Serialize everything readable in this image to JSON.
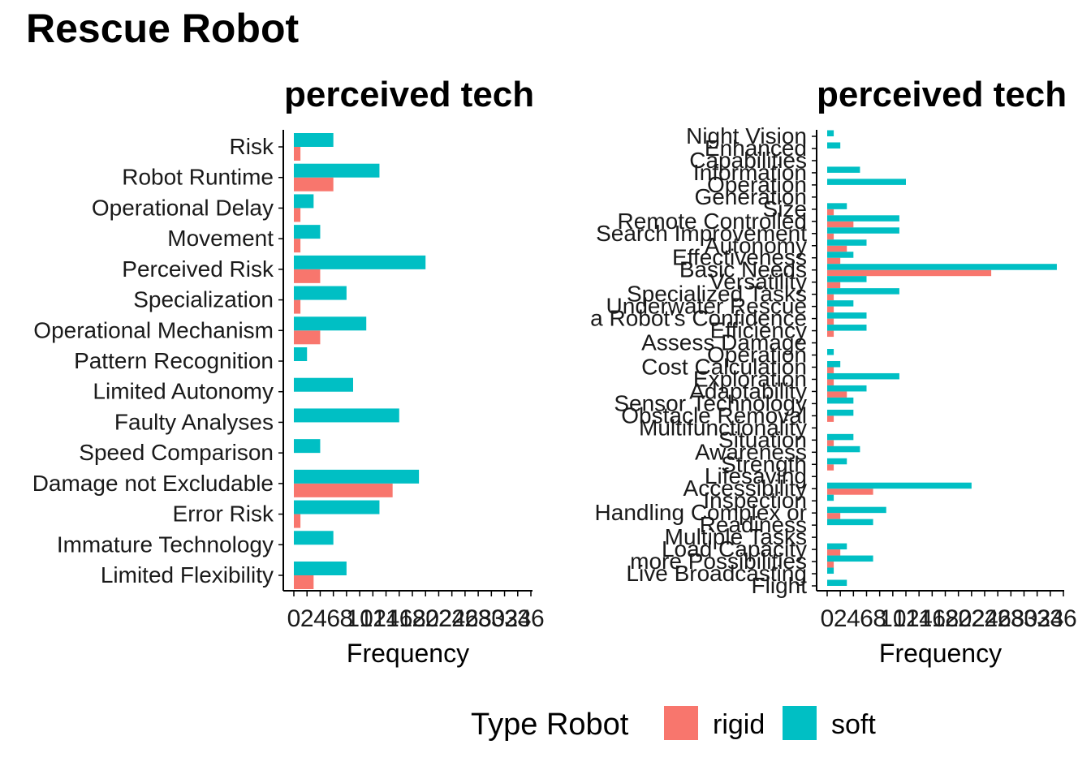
{
  "title": "Rescue Robot",
  "colors": {
    "rigid": "#F8766D",
    "soft": "#00BFC4",
    "axis": "#000000"
  },
  "legend": {
    "title": "Type Robot",
    "items": [
      {
        "key": "rigid",
        "label": "rigid"
      },
      {
        "key": "soft",
        "label": "soft"
      }
    ]
  },
  "chart_data": [
    {
      "type": "bar",
      "orientation": "horizontal",
      "title": "perceived tech",
      "xlabel": "Frequency",
      "xlim": [
        0,
        36
      ],
      "xticks": [
        0,
        2,
        4,
        6,
        8,
        10,
        12,
        14,
        16,
        18,
        20,
        22,
        24,
        26,
        28,
        30,
        32,
        34,
        36
      ],
      "grid": false,
      "categories": [
        "Risk",
        "Robot Runtime",
        "Operational Delay",
        "Movement",
        "Perceived Risk",
        "Specialization",
        "Operational Mechanism",
        "Pattern Recognition",
        "Limited Autonomy",
        "Faulty Analyses",
        "Speed Comparison",
        "Damage not Excludable",
        "Error Risk",
        "Immature Technology",
        "Limited Flexibility"
      ],
      "series": [
        {
          "name": "rigid",
          "values": [
            1,
            6,
            1,
            1,
            4,
            1,
            4,
            0,
            0,
            0,
            0,
            15,
            1,
            0,
            3
          ]
        },
        {
          "name": "soft",
          "values": [
            6,
            13,
            3,
            4,
            20,
            8,
            11,
            2,
            9,
            16,
            4,
            19,
            13,
            6,
            8
          ]
        }
      ]
    },
    {
      "type": "bar",
      "orientation": "horizontal",
      "title": "perceived tech",
      "xlabel": "Frequency",
      "xlim": [
        0,
        36
      ],
      "xticks": [
        0,
        2,
        4,
        6,
        8,
        10,
        12,
        14,
        16,
        18,
        20,
        22,
        24,
        26,
        28,
        30,
        32,
        34,
        36
      ],
      "grid": false,
      "categories": [
        "Night Vision",
        "Enhanced",
        "Capabilities",
        "Information",
        "Operation",
        "Generation",
        "Size",
        "Remote Controlled",
        "Search Improvement",
        "Autonomy",
        "Effectiveness",
        "Basic Needs",
        "Versatility",
        "Specialized Tasks",
        "Underwater Rescue",
        "a Robot's Confidence",
        "Efficiency",
        "Assess Damage",
        "Operation",
        "Cost Calculation",
        "Exploration",
        "Adaptability",
        "Sensor Technology",
        "Obstacle Removal",
        "Multifunctionality",
        "Situation",
        "Awareness",
        "Strength",
        "Lifesaving",
        "Accessibility",
        "Inspection",
        "Handling Complex or",
        "Readiness",
        "Multiple Tasks",
        "Load Capacity",
        "more Possibilities",
        "Live Broadcasting",
        "Flight"
      ],
      "series": [
        {
          "name": "rigid",
          "values": [
            0,
            0,
            0,
            0,
            0,
            0,
            1,
            4,
            1,
            3,
            2,
            25,
            2,
            1,
            1,
            1,
            1,
            0,
            0,
            1,
            1,
            3,
            0,
            1,
            0,
            1,
            0,
            1,
            0,
            7,
            0,
            2,
            0,
            0,
            2,
            1,
            0,
            0
          ]
        },
        {
          "name": "soft",
          "values": [
            1,
            2,
            0,
            5,
            12,
            0,
            3,
            11,
            11,
            6,
            4,
            35,
            6,
            11,
            4,
            6,
            6,
            0,
            1,
            2,
            11,
            6,
            4,
            4,
            0,
            4,
            5,
            3,
            0,
            22,
            1,
            9,
            7,
            0,
            3,
            7,
            1,
            3
          ]
        }
      ]
    }
  ]
}
